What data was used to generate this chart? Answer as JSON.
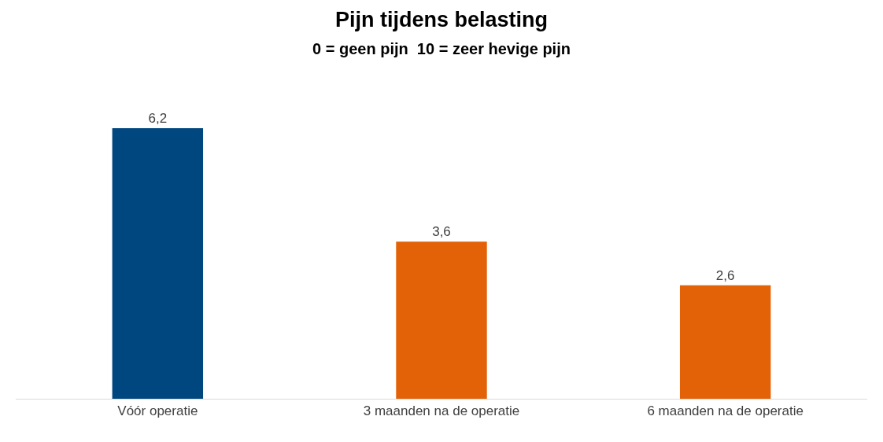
{
  "chart_data": {
    "type": "bar",
    "title": "Pijn tijdens belasting",
    "subtitle": "0 = geen pijn  10 = zeer hevige pijn",
    "categories": [
      "Vóór operatie",
      "3 maanden na de operatie",
      "6 maanden na de operatie"
    ],
    "values": [
      6.2,
      3.6,
      2.6
    ],
    "value_labels": [
      "6,2",
      "3,6",
      "2,6"
    ],
    "colors": [
      "#00467f",
      "#e36208",
      "#e36208"
    ]
  }
}
